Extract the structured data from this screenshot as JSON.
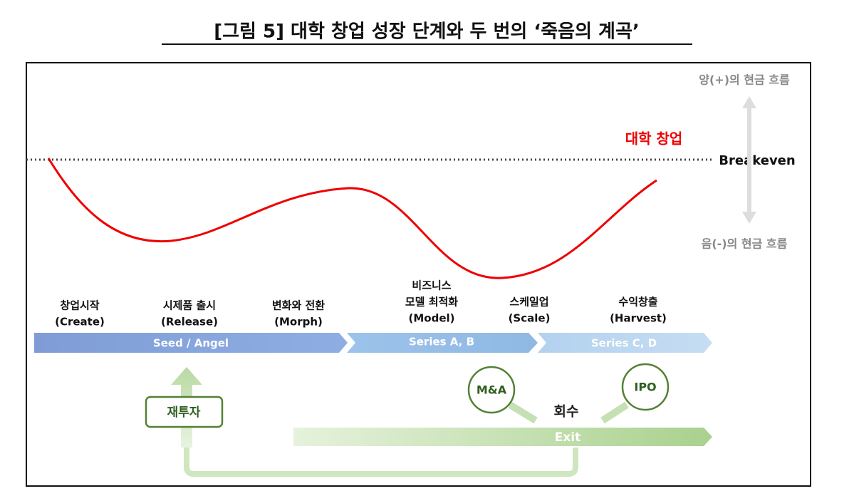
{
  "title": "[그림 5] 대학 창업 성장 단계와 두 번의 ‘죽음의 계곡’",
  "axis": {
    "top": "양(+)의 현금 흐름",
    "bottom": "음(-)의 현금 흐름",
    "breakeven": "Breakeven"
  },
  "curve_label": "대학 창업",
  "stages": [
    {
      "lines": [
        "창업시작",
        "(Create)"
      ]
    },
    {
      "lines": [
        "시제품 출시",
        "(Release)"
      ]
    },
    {
      "lines": [
        "변화와 전환",
        "(Morph)"
      ]
    },
    {
      "lines": [
        "비즈니스",
        "모델 최적화",
        "(Model)"
      ]
    },
    {
      "lines": [
        "스케일업",
        "(Scale)"
      ]
    },
    {
      "lines": [
        "수익창출",
        "(Harvest)"
      ]
    }
  ],
  "rounds": [
    "Seed / Angel",
    "Series A, B",
    "Series C, D"
  ],
  "exits": {
    "ma": "M&A",
    "ipo": "IPO",
    "recovery": "회수",
    "exit": "Exit",
    "reinvest": "재투자"
  }
}
